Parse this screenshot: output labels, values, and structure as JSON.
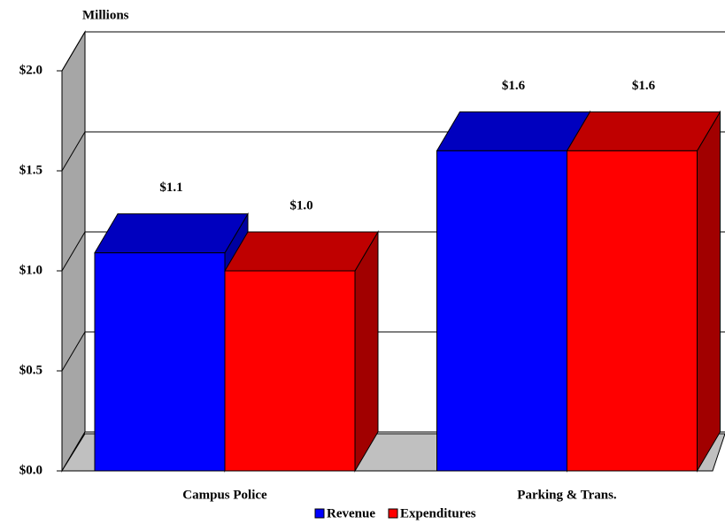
{
  "chart_data": {
    "type": "bar3d",
    "y_axis_title": "Millions",
    "categories": [
      "Campus Police",
      "Parking & Trans."
    ],
    "series": [
      {
        "name": "Revenue",
        "color": "#0000ff",
        "values": [
          1.09,
          1.6
        ],
        "value_labels": [
          "$1.1",
          "$1.6"
        ]
      },
      {
        "name": "Expenditures",
        "color": "#ff0000",
        "values": [
          1.0,
          1.6
        ],
        "value_labels": [
          "$1.0",
          "$1.6"
        ]
      }
    ],
    "ylim": [
      0,
      2
    ],
    "yticks": [
      {
        "value": 0,
        "label": "$0.0"
      },
      {
        "value": 0.5,
        "label": "$0.5"
      },
      {
        "value": 1,
        "label": "$1.0"
      },
      {
        "value": 1.5,
        "label": "$1.5"
      },
      {
        "value": 2,
        "label": "$2.0"
      }
    ],
    "grid": true,
    "legend": "bottom"
  }
}
